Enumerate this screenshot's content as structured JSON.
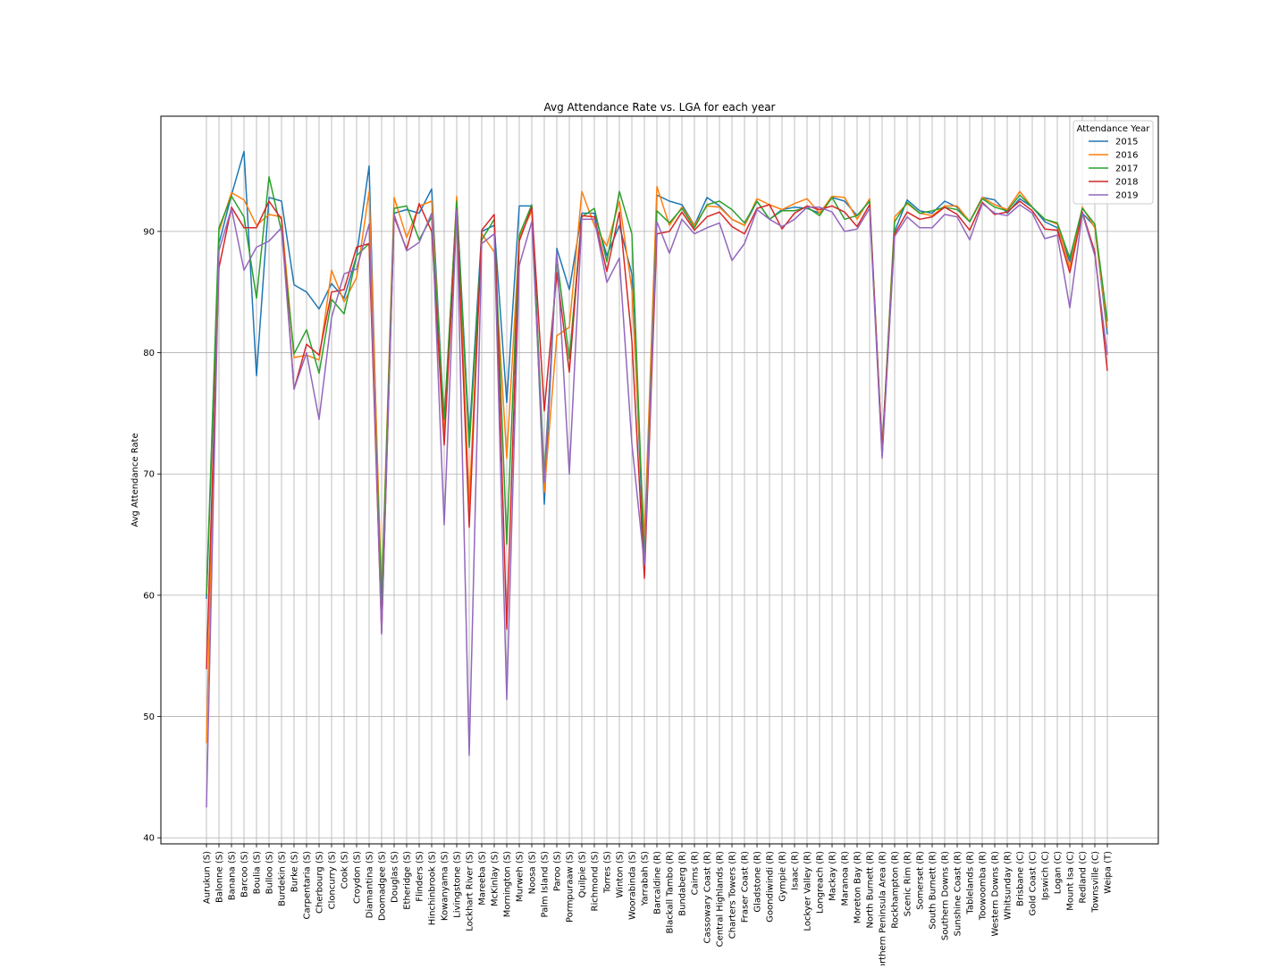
{
  "chart_data": {
    "type": "line",
    "title": "Avg Attendance Rate vs. LGA for each year",
    "xlabel": "",
    "ylabel": "Avg Attendance Rate",
    "ylim": [
      39.5,
      99.5
    ],
    "yticks": [
      40,
      50,
      60,
      70,
      80,
      90
    ],
    "grid": true,
    "legend": {
      "title": "Attendance Year",
      "placement": "top-right"
    },
    "categories": [
      "Aurukun (S)",
      "Balonne (S)",
      "Banana (S)",
      "Barcoo (S)",
      "Boulia (S)",
      "Bulloo (S)",
      "Burdekin (S)",
      "Burke (S)",
      "Carpentaria (S)",
      "Cherbourg (S)",
      "Cloncurry (S)",
      "Cook (S)",
      "Croydon (S)",
      "Diamantina (S)",
      "Doomadgee (S)",
      "Douglas (S)",
      "Etheridge (S)",
      "Flinders (S)",
      "Hinchinbrook (S)",
      "Kowanyama (S)",
      "Livingstone (S)",
      "Lockhart River (S)",
      "Mareeba (S)",
      "McKinlay (S)",
      "Mornington (S)",
      "Murweh (S)",
      "Noosa (S)",
      "Palm Island (S)",
      "Paroo (S)",
      "Pormpuraaw (S)",
      "Quilpie (S)",
      "Richmond (S)",
      "Torres (S)",
      "Winton (S)",
      "Woorabinda (S)",
      "Yarrabah (S)",
      "Barcaldine (R)",
      "Blackall Tambo (R)",
      "Bundaberg (R)",
      "Cairns (R)",
      "Cassowary Coast (R)",
      "Central Highlands (R)",
      "Charters Towers (R)",
      "Fraser Coast (R)",
      "Gladstone (R)",
      "Goondiwindi (R)",
      "Gympie (R)",
      "Isaac (R)",
      "Lockyer Valley (R)",
      "Longreach (R)",
      "Mackay (R)",
      "Maranoa (R)",
      "Moreton Bay (R)",
      "North Burnett (R)",
      "Northern Peninsula Area (R)",
      "Rockhampton (R)",
      "Scenic Rim (R)",
      "Somerset (R)",
      "South Burnett (R)",
      "Southern Downs (R)",
      "Sunshine Coast (R)",
      "Tablelands (R)",
      "Toowoomba (R)",
      "Western Downs (R)",
      "Whitsunday (R)",
      "Brisbane (C)",
      "Gold Coast (C)",
      "Ipswich (C)",
      "Logan (C)",
      "Mount Isa (C)",
      "Redland (C)",
      "Townsville (C)",
      "Weipa (T)"
    ],
    "series": [
      {
        "name": "2015",
        "color": "#1f77b4",
        "values": [
          59.7,
          89.0,
          93.0,
          96.6,
          78.1,
          92.8,
          92.5,
          85.6,
          85.0,
          83.6,
          85.7,
          84.5,
          88.0,
          95.4,
          58.0,
          91.5,
          91.8,
          91.5,
          93.5,
          74.0,
          92.5,
          73.0,
          90.0,
          90.5,
          75.9,
          92.1,
          92.1,
          67.5,
          88.6,
          85.2,
          91.5,
          91.5,
          88.0,
          90.5,
          86.5,
          62.5,
          93.0,
          92.5,
          92.2,
          90.5,
          92.8,
          92.1,
          91.0,
          90.5,
          92.5,
          91.0,
          91.8,
          92.0,
          91.9,
          91.5,
          92.8,
          92.5,
          91.3,
          92.5,
          71.5,
          90.0,
          92.6,
          91.7,
          91.5,
          92.5,
          92.0,
          90.8,
          92.8,
          92.6,
          91.5,
          92.7,
          92.0,
          90.8,
          90.3,
          87.5,
          91.5,
          90.4,
          81.5
        ]
      },
      {
        "name": "2016",
        "color": "#ff7f0e",
        "values": [
          47.8,
          90.0,
          93.2,
          92.6,
          90.5,
          91.4,
          91.2,
          79.6,
          79.8,
          79.4,
          86.8,
          84.2,
          86.2,
          93.3,
          60.0,
          92.8,
          89.5,
          92.1,
          92.5,
          73.7,
          92.9,
          67.5,
          89.8,
          88.3,
          71.3,
          89.5,
          91.7,
          68.5,
          81.4,
          82.1,
          93.3,
          90.5,
          88.8,
          92.5,
          85.2,
          64.5,
          93.7,
          90.5,
          92.0,
          90.5,
          92.1,
          92.0,
          91.0,
          90.5,
          92.7,
          92.2,
          91.8,
          92.3,
          92.7,
          91.5,
          92.9,
          92.8,
          91.0,
          92.7,
          71.6,
          91.2,
          92.3,
          91.5,
          91.3,
          92.1,
          92.1,
          90.8,
          92.8,
          92.2,
          91.8,
          93.3,
          92.0,
          91.0,
          90.6,
          87.0,
          92.0,
          90.3,
          82.0
        ]
      },
      {
        "name": "2017",
        "color": "#2ca02c",
        "values": [
          60.0,
          90.3,
          92.9,
          91.2,
          84.5,
          94.5,
          90.0,
          79.9,
          81.9,
          78.3,
          84.4,
          83.2,
          88.0,
          89.0,
          59.5,
          91.9,
          92.1,
          89.3,
          91.2,
          74.5,
          92.5,
          72.2,
          89.3,
          91.0,
          64.2,
          89.7,
          92.2,
          69.8,
          87.9,
          79.5,
          91.2,
          91.9,
          87.5,
          93.3,
          89.8,
          62.9,
          91.7,
          90.7,
          91.9,
          90.3,
          92.2,
          92.5,
          91.8,
          90.7,
          92.5,
          91.0,
          91.7,
          91.7,
          92.0,
          91.3,
          92.8,
          91.0,
          91.3,
          92.5,
          72.0,
          90.8,
          92.4,
          91.5,
          91.7,
          92.0,
          91.8,
          90.8,
          92.7,
          92.0,
          91.7,
          93.0,
          92.0,
          91.0,
          90.7,
          87.8,
          91.9,
          90.6,
          82.6
        ]
      },
      {
        "name": "2018",
        "color": "#d62728",
        "values": [
          53.9,
          87.0,
          92.0,
          90.3,
          90.3,
          92.5,
          91.0,
          77.0,
          80.7,
          79.8,
          85.0,
          85.2,
          88.7,
          89.0,
          56.9,
          91.2,
          88.5,
          92.3,
          90.0,
          72.4,
          91.8,
          65.6,
          90.1,
          91.4,
          57.2,
          89.2,
          92.0,
          75.2,
          86.6,
          78.4,
          91.3,
          91.2,
          86.7,
          91.6,
          81.0,
          61.4,
          89.8,
          90.0,
          91.6,
          90.1,
          91.2,
          91.6,
          90.4,
          89.8,
          91.9,
          92.2,
          90.2,
          91.5,
          92.1,
          91.8,
          92.1,
          91.6,
          90.4,
          92.2,
          72.0,
          89.8,
          91.6,
          91.0,
          91.2,
          92.0,
          91.4,
          90.1,
          92.4,
          91.4,
          91.6,
          92.5,
          91.7,
          90.2,
          90.1,
          86.6,
          91.6,
          88.3,
          78.5
        ]
      },
      {
        "name": "2019",
        "color": "#9467bd",
        "values": [
          42.5,
          88.4,
          91.9,
          86.8,
          88.7,
          89.2,
          90.3,
          77.0,
          80.0,
          74.5,
          82.9,
          86.5,
          86.9,
          90.6,
          56.8,
          91.4,
          88.4,
          89.1,
          91.5,
          65.8,
          91.8,
          46.8,
          89.0,
          89.8,
          51.4,
          87.2,
          90.8,
          69.3,
          88.4,
          70.0,
          91.0,
          91.0,
          85.8,
          87.8,
          72.5,
          62.5,
          90.8,
          88.2,
          91.0,
          89.8,
          90.3,
          90.7,
          87.6,
          89.0,
          91.8,
          91.0,
          90.4,
          91.0,
          92.0,
          92.0,
          91.6,
          90.0,
          90.2,
          91.9,
          71.3,
          89.6,
          91.2,
          90.3,
          90.3,
          91.4,
          91.2,
          89.3,
          92.3,
          91.5,
          91.3,
          92.2,
          91.5,
          89.4,
          89.7,
          83.7,
          91.5,
          88.0,
          79.8
        ]
      }
    ]
  }
}
